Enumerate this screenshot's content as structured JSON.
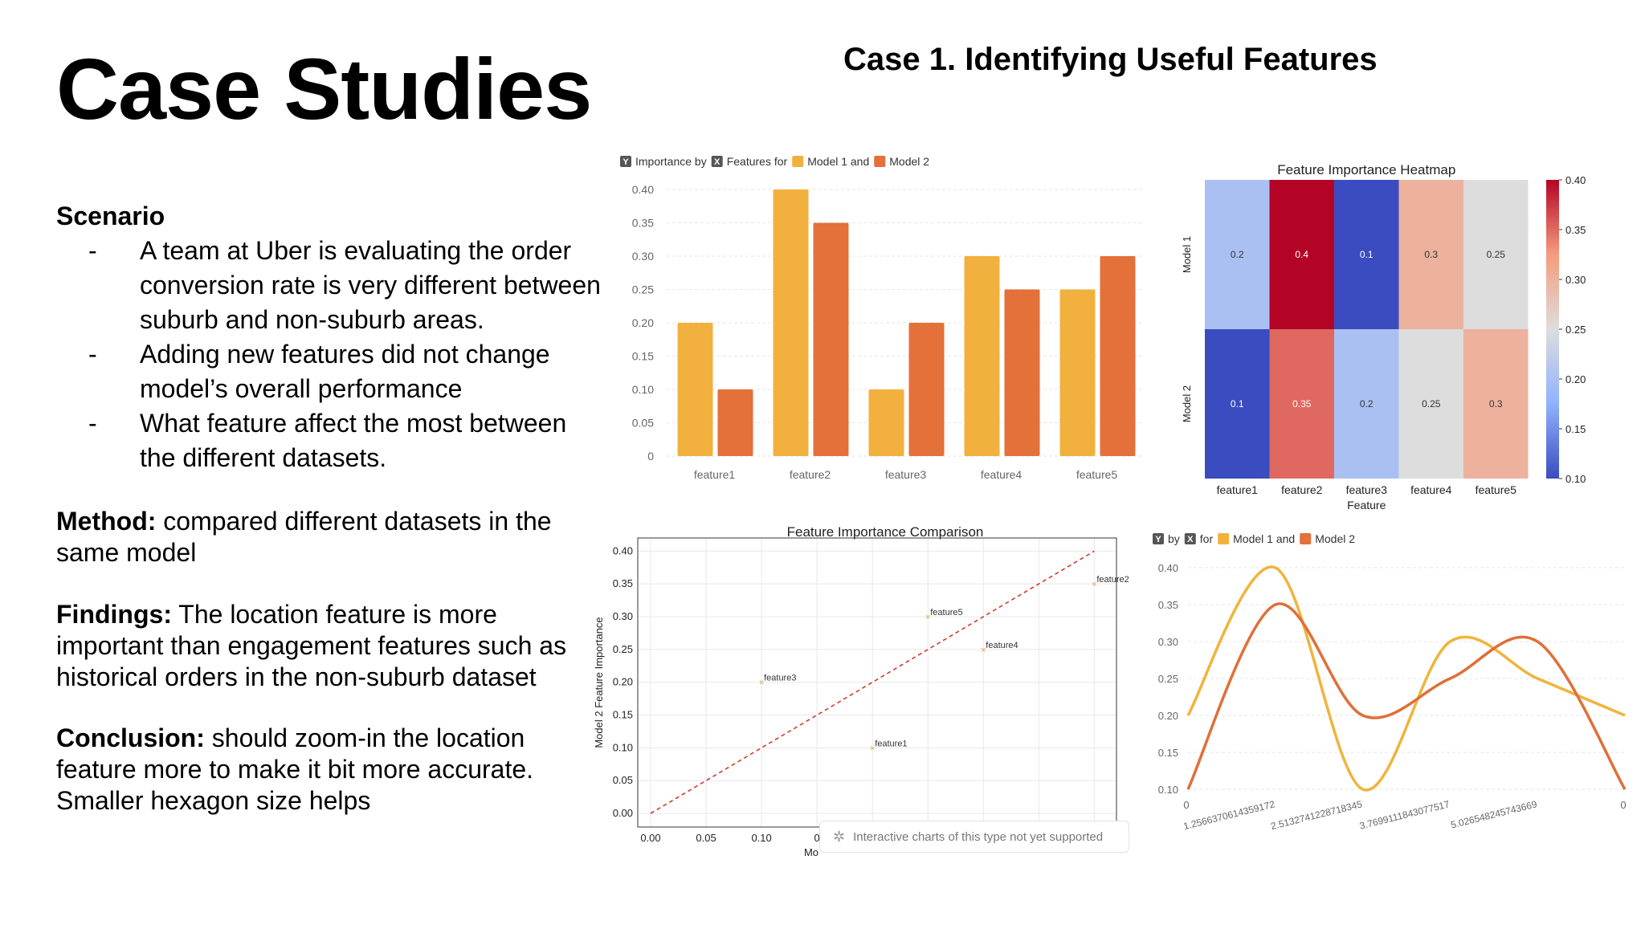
{
  "slide": {
    "title": "Case Studies",
    "case_title": "Case 1. Identifying Useful Features"
  },
  "text": {
    "scenario_heading": "Scenario",
    "bullets": [
      "A team at Uber is evaluating the order conversion rate is very different between suburb and non-suburb areas.",
      "Adding new features did not change model’s overall performance",
      "What feature affect the most between the different datasets."
    ],
    "method_label": "Method:",
    "method_text": " compared different datasets in the same model",
    "findings_label": "Findings:",
    "findings_text": " The location feature is more important than engagement features such as historical orders in the non-suburb dataset",
    "conclusion_label": "Conclusion:",
    "conclusion_text": " should zoom-in the location feature more to make it bit more accurate. Smaller hexagon size helps"
  },
  "notice": {
    "icon": "sparkle-icon",
    "text": "Interactive charts of this type not yet supported"
  },
  "colors": {
    "model1": "#f2b13e",
    "model2": "#e4703a",
    "line_model1": "#f0b43c",
    "line_model2": "#e06f38",
    "diagonal": "#d33a2c"
  },
  "chart_data": [
    {
      "type": "bar",
      "title_parts": [
        "Y",
        "Importance by",
        "X",
        "Features for",
        "Model 1 and",
        "Model 2"
      ],
      "categories": [
        "feature1",
        "feature2",
        "feature3",
        "feature4",
        "feature5"
      ],
      "series": [
        {
          "name": "Model 1",
          "values": [
            0.2,
            0.4,
            0.1,
            0.3,
            0.25
          ]
        },
        {
          "name": "Model 2",
          "values": [
            0.1,
            0.35,
            0.2,
            0.25,
            0.3
          ]
        }
      ],
      "ylim": [
        0,
        0.4
      ],
      "yticks": [
        "0",
        "0.05",
        "0.10",
        "0.15",
        "0.20",
        "0.25",
        "0.30",
        "0.35",
        "0.40"
      ]
    },
    {
      "type": "heatmap",
      "title": "Feature Importance Heatmap",
      "xlabel": "Feature",
      "row_labels": [
        "Model 1",
        "Model 2"
      ],
      "col_labels": [
        "feature1",
        "feature2",
        "feature3",
        "feature4",
        "feature5"
      ],
      "values": [
        [
          0.2,
          0.4,
          0.1,
          0.3,
          0.25
        ],
        [
          0.1,
          0.35,
          0.2,
          0.25,
          0.3
        ]
      ],
      "cell_labels": [
        [
          "0.2",
          "0.4",
          "0.1",
          "0.3",
          "0.25"
        ],
        [
          "0.1",
          "0.35",
          "0.2",
          "0.25",
          "0.3"
        ]
      ],
      "colorbar_ticks": [
        "0.40",
        "0.35",
        "0.30",
        "0.25",
        "0.20",
        "0.15",
        "0.10"
      ],
      "vmin": 0.1,
      "vmax": 0.4
    },
    {
      "type": "scatter",
      "title": "Feature Importance Comparison",
      "ylabel": "Model 2 Feature Importance",
      "xlabel_visible": "Mo",
      "points": [
        {
          "label": "feature1",
          "x": 0.2,
          "y": 0.1
        },
        {
          "label": "feature2",
          "x": 0.4,
          "y": 0.35
        },
        {
          "label": "feature3",
          "x": 0.1,
          "y": 0.2
        },
        {
          "label": "feature4",
          "x": 0.3,
          "y": 0.25
        },
        {
          "label": "feature5",
          "x": 0.25,
          "y": 0.3
        }
      ],
      "xticks": [
        "0.00",
        "0.05",
        "0.10",
        "0"
      ],
      "yticks": [
        "0.00",
        "0.05",
        "0.10",
        "0.15",
        "0.20",
        "0.25",
        "0.30",
        "0.35",
        "0.40"
      ],
      "xlim": [
        0,
        0.42
      ],
      "ylim": [
        0,
        0.42
      ]
    },
    {
      "type": "line",
      "title_parts": [
        "Y",
        "by",
        "X",
        "for",
        "Model 1 and",
        "Model 2"
      ],
      "x": [
        0,
        1.2566370614359172,
        2.5132741228718345,
        3.7699111843077517,
        5.026548245743669,
        6.283185307179586
      ],
      "x_tick_labels": [
        "0",
        "1.2566370614359172",
        "2.5132741228718345",
        "3.7699111843077517",
        "5.026548245743669",
        "0"
      ],
      "series": [
        {
          "name": "Model 1",
          "values": [
            0.2,
            0.4,
            0.1,
            0.3,
            0.25,
            0.2
          ]
        },
        {
          "name": "Model 2",
          "values": [
            0.1,
            0.35,
            0.2,
            0.25,
            0.3,
            0.1
          ]
        }
      ],
      "ylim": [
        0.1,
        0.4
      ],
      "yticks": [
        "0.10",
        "0.15",
        "0.20",
        "0.25",
        "0.30",
        "0.35",
        "0.40"
      ]
    }
  ]
}
